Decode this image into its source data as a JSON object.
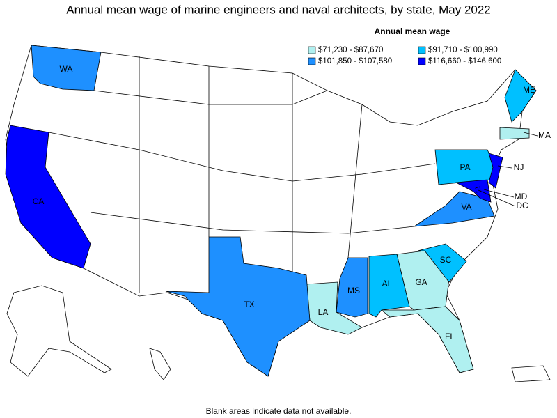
{
  "title": "Annual mean wage of marine engineers and naval architects, by state, May 2022",
  "legend": {
    "title": "Annual mean wage",
    "items": [
      {
        "label": "$71,230 - $87,670",
        "color": "#b0f0f0",
        "states": [
          "MA",
          "LA",
          "GA",
          "FL"
        ]
      },
      {
        "label": "$91,710 - $100,990",
        "color": "#00c0ff",
        "states": [
          "ME",
          "PA",
          "SC",
          "AL"
        ]
      },
      {
        "label": "$101,850 - $107,580",
        "color": "#1e90ff",
        "states": [
          "WA",
          "TX",
          "MS",
          "VA"
        ]
      },
      {
        "label": "$116,660 - $146,600",
        "color": "#0000ff",
        "states": [
          "CA",
          "NJ",
          "MD",
          "DC"
        ]
      }
    ]
  },
  "footnote": "Blank areas indicate data not available."
}
